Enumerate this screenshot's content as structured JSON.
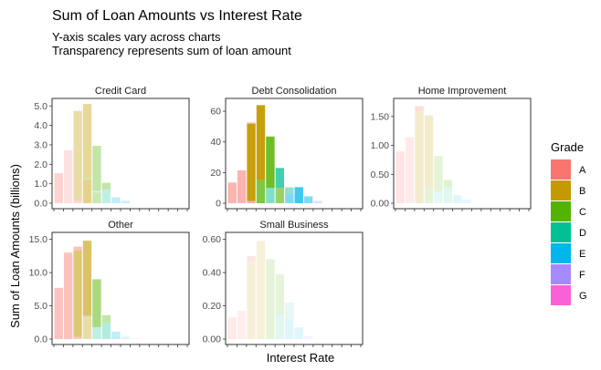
{
  "title": "Sum of Loan Amounts vs Interest Rate",
  "subtitle_lines": [
    "Y-axis scales vary across charts",
    "Transparency represents sum of loan amount"
  ],
  "xlabel": "Interest Rate",
  "ylabel": "Sum of Loan Amounts (billions)",
  "legend": {
    "title": "Grade",
    "position": "right",
    "items": [
      {
        "label": "A",
        "color": "#F8766D"
      },
      {
        "label": "B",
        "color": "#C49A00"
      },
      {
        "label": "C",
        "color": "#53B400"
      },
      {
        "label": "D",
        "color": "#00C094"
      },
      {
        "label": "E",
        "color": "#00B6EB"
      },
      {
        "label": "F",
        "color": "#A58AFF"
      },
      {
        "label": "G",
        "color": "#FB61D7"
      }
    ]
  },
  "chart_data": [
    {
      "type": "bar",
      "stacked": true,
      "facet": "Credit Card",
      "ylim": [
        0,
        5.2
      ],
      "yticks": [
        "0.0",
        "1.0",
        "2.0",
        "3.0",
        "4.0",
        "5.0"
      ],
      "x_bins": 14,
      "bars": [
        {
          "bin": 0,
          "segments": [
            {
              "grade": "A",
              "value": 1.55,
              "alpha": 0.32
            }
          ]
        },
        {
          "bin": 1,
          "segments": [
            {
              "grade": "A",
              "value": 2.72,
              "alpha": 0.22
            }
          ]
        },
        {
          "bin": 2,
          "segments": [
            {
              "grade": "A",
              "value": 0.15,
              "alpha": 0.3
            },
            {
              "grade": "B",
              "value": 4.55,
              "alpha": 0.35
            },
            {
              "grade": "A",
              "value": 0.05,
              "alpha": 0.35
            }
          ]
        },
        {
          "bin": 3,
          "segments": [
            {
              "grade": "B",
              "value": 1.2,
              "alpha": 0.45
            },
            {
              "grade": "C",
              "value": 0.1,
              "alpha": 0.3
            },
            {
              "grade": "B",
              "value": 3.8,
              "alpha": 0.4
            }
          ]
        },
        {
          "bin": 4,
          "segments": [
            {
              "grade": "C",
              "value": 0.55,
              "alpha": 0.3
            },
            {
              "grade": "D",
              "value": 0.1,
              "alpha": 0.2
            },
            {
              "grade": "C",
              "value": 2.3,
              "alpha": 0.35
            }
          ]
        },
        {
          "bin": 5,
          "segments": [
            {
              "grade": "D",
              "value": 0.7,
              "alpha": 0.25
            },
            {
              "grade": "C",
              "value": 0.35,
              "alpha": 0.35
            }
          ]
        },
        {
          "bin": 6,
          "segments": [
            {
              "grade": "E",
              "value": 0.3,
              "alpha": 0.25
            }
          ]
        },
        {
          "bin": 7,
          "segments": [
            {
              "grade": "E",
              "value": 0.13,
              "alpha": 0.2
            }
          ]
        }
      ]
    },
    {
      "type": "bar",
      "stacked": true,
      "facet": "Debt Consolidation",
      "ylim": [
        0,
        66
      ],
      "yticks": [
        "0",
        "20",
        "40",
        "60"
      ],
      "x_bins": 14,
      "bars": [
        {
          "bin": 0,
          "segments": [
            {
              "grade": "A",
              "value": 13.5,
              "alpha": 0.55
            }
          ]
        },
        {
          "bin": 1,
          "segments": [
            {
              "grade": "A",
              "value": 21.5,
              "alpha": 0.55
            }
          ]
        },
        {
          "bin": 2,
          "segments": [
            {
              "grade": "A",
              "value": 1.5,
              "alpha": 0.6
            },
            {
              "grade": "B",
              "value": 50.5,
              "alpha": 0.95
            },
            {
              "grade": "A",
              "value": 1.0,
              "alpha": 0.3
            }
          ]
        },
        {
          "bin": 3,
          "segments": [
            {
              "grade": "C",
              "value": 15.0,
              "alpha": 0.75
            },
            {
              "grade": "B",
              "value": 49.0,
              "alpha": 0.95
            }
          ]
        },
        {
          "bin": 4,
          "segments": [
            {
              "grade": "D",
              "value": 10.0,
              "alpha": 0.5
            },
            {
              "grade": "C",
              "value": 33.5,
              "alpha": 0.85
            }
          ]
        },
        {
          "bin": 5,
          "segments": [
            {
              "grade": "C",
              "value": 10.0,
              "alpha": 0.6
            },
            {
              "grade": "D",
              "value": 13.0,
              "alpha": 0.75
            }
          ]
        },
        {
          "bin": 6,
          "segments": [
            {
              "grade": "E",
              "value": 6.0,
              "alpha": 0.5
            },
            {
              "grade": "D",
              "value": 4.0,
              "alpha": 0.45
            },
            {
              "grade": "C",
              "value": 0.5,
              "alpha": 0.3
            }
          ]
        },
        {
          "bin": 7,
          "segments": [
            {
              "grade": "E",
              "value": 10.5,
              "alpha": 0.75
            }
          ]
        },
        {
          "bin": 8,
          "segments": [
            {
              "grade": "E",
              "value": 4.5,
              "alpha": 0.5
            }
          ]
        },
        {
          "bin": 9,
          "segments": [
            {
              "grade": "F",
              "value": 1.5,
              "alpha": 0.3
            }
          ]
        }
      ]
    },
    {
      "type": "bar",
      "stacked": true,
      "facet": "Home Improvement",
      "ylim": [
        0,
        1.75
      ],
      "yticks": [
        "0.00",
        "0.50",
        "1.00",
        "1.50"
      ],
      "x_bins": 14,
      "bars": [
        {
          "bin": 0,
          "segments": [
            {
              "grade": "A",
              "value": 0.9,
              "alpha": 0.2
            }
          ]
        },
        {
          "bin": 1,
          "segments": [
            {
              "grade": "A",
              "value": 1.14,
              "alpha": 0.15
            }
          ]
        },
        {
          "bin": 2,
          "segments": [
            {
              "grade": "B",
              "value": 1.6,
              "alpha": 0.2
            },
            {
              "grade": "A",
              "value": 0.08,
              "alpha": 0.25
            }
          ]
        },
        {
          "bin": 3,
          "segments": [
            {
              "grade": "C",
              "value": 0.28,
              "alpha": 0.15
            },
            {
              "grade": "B",
              "value": 1.24,
              "alpha": 0.2
            }
          ]
        },
        {
          "bin": 4,
          "segments": [
            {
              "grade": "D",
              "value": 0.2,
              "alpha": 0.1
            },
            {
              "grade": "C",
              "value": 0.62,
              "alpha": 0.15
            }
          ]
        },
        {
          "bin": 5,
          "segments": [
            {
              "grade": "D",
              "value": 0.28,
              "alpha": 0.12
            },
            {
              "grade": "C",
              "value": 0.12,
              "alpha": 0.18
            }
          ]
        },
        {
          "bin": 6,
          "segments": [
            {
              "grade": "E",
              "value": 0.14,
              "alpha": 0.12
            }
          ]
        },
        {
          "bin": 7,
          "segments": [
            {
              "grade": "E",
              "value": 0.06,
              "alpha": 0.1
            }
          ]
        }
      ]
    },
    {
      "type": "bar",
      "stacked": true,
      "facet": "Other",
      "ylim": [
        0,
        15.5
      ],
      "yticks": [
        "0.0",
        "5.0",
        "10.0",
        "15.0"
      ],
      "x_bins": 14,
      "bars": [
        {
          "bin": 0,
          "segments": [
            {
              "grade": "A",
              "value": 7.7,
              "alpha": 0.45
            }
          ]
        },
        {
          "bin": 1,
          "segments": [
            {
              "grade": "A",
              "value": 13.0,
              "alpha": 0.45
            }
          ]
        },
        {
          "bin": 2,
          "segments": [
            {
              "grade": "A",
              "value": 0.3,
              "alpha": 0.4
            },
            {
              "grade": "B",
              "value": 13.0,
              "alpha": 0.55
            },
            {
              "grade": "A",
              "value": 0.6,
              "alpha": 0.45
            }
          ]
        },
        {
          "bin": 3,
          "segments": [
            {
              "grade": "B",
              "value": 3.3,
              "alpha": 0.35
            },
            {
              "grade": "C",
              "value": 0.2,
              "alpha": 0.3
            },
            {
              "grade": "B",
              "value": 11.3,
              "alpha": 0.6
            }
          ]
        },
        {
          "bin": 4,
          "segments": [
            {
              "grade": "D",
              "value": 1.8,
              "alpha": 0.25
            },
            {
              "grade": "C",
              "value": 7.2,
              "alpha": 0.5
            }
          ]
        },
        {
          "bin": 5,
          "segments": [
            {
              "grade": "D",
              "value": 2.5,
              "alpha": 0.3
            },
            {
              "grade": "C",
              "value": 1.1,
              "alpha": 0.35
            }
          ]
        },
        {
          "bin": 6,
          "segments": [
            {
              "grade": "E",
              "value": 1.1,
              "alpha": 0.25
            }
          ]
        },
        {
          "bin": 7,
          "segments": [
            {
              "grade": "E",
              "value": 0.35,
              "alpha": 0.15
            }
          ]
        },
        {
          "bin": 8,
          "segments": [
            {
              "grade": "F",
              "value": 0.1,
              "alpha": 0.15
            }
          ]
        }
      ]
    },
    {
      "type": "bar",
      "stacked": true,
      "facet": "Small Business",
      "ylim": [
        0,
        0.62
      ],
      "yticks": [
        "0.00",
        "0.20",
        "0.40",
        "0.60"
      ],
      "x_bins": 14,
      "bars": [
        {
          "bin": 0,
          "segments": [
            {
              "grade": "A",
              "value": 0.13,
              "alpha": 0.15
            }
          ]
        },
        {
          "bin": 1,
          "segments": [
            {
              "grade": "A",
              "value": 0.17,
              "alpha": 0.12
            }
          ]
        },
        {
          "bin": 2,
          "segments": [
            {
              "grade": "B",
              "value": 0.47,
              "alpha": 0.15
            },
            {
              "grade": "A",
              "value": 0.03,
              "alpha": 0.2
            }
          ]
        },
        {
          "bin": 3,
          "segments": [
            {
              "grade": "B",
              "value": 0.59,
              "alpha": 0.15
            }
          ]
        },
        {
          "bin": 4,
          "segments": [
            {
              "grade": "C",
              "value": 0.48,
              "alpha": 0.15
            }
          ]
        },
        {
          "bin": 5,
          "segments": [
            {
              "grade": "D",
              "value": 0.15,
              "alpha": 0.12
            },
            {
              "grade": "C",
              "value": 0.24,
              "alpha": 0.15
            }
          ]
        },
        {
          "bin": 6,
          "segments": [
            {
              "grade": "E",
              "value": 0.12,
              "alpha": 0.12
            },
            {
              "grade": "D",
              "value": 0.1,
              "alpha": 0.1
            }
          ]
        },
        {
          "bin": 7,
          "segments": [
            {
              "grade": "E",
              "value": 0.07,
              "alpha": 0.12
            }
          ]
        },
        {
          "bin": 8,
          "segments": [
            {
              "grade": "F",
              "value": 0.02,
              "alpha": 0.1
            }
          ]
        }
      ]
    }
  ]
}
